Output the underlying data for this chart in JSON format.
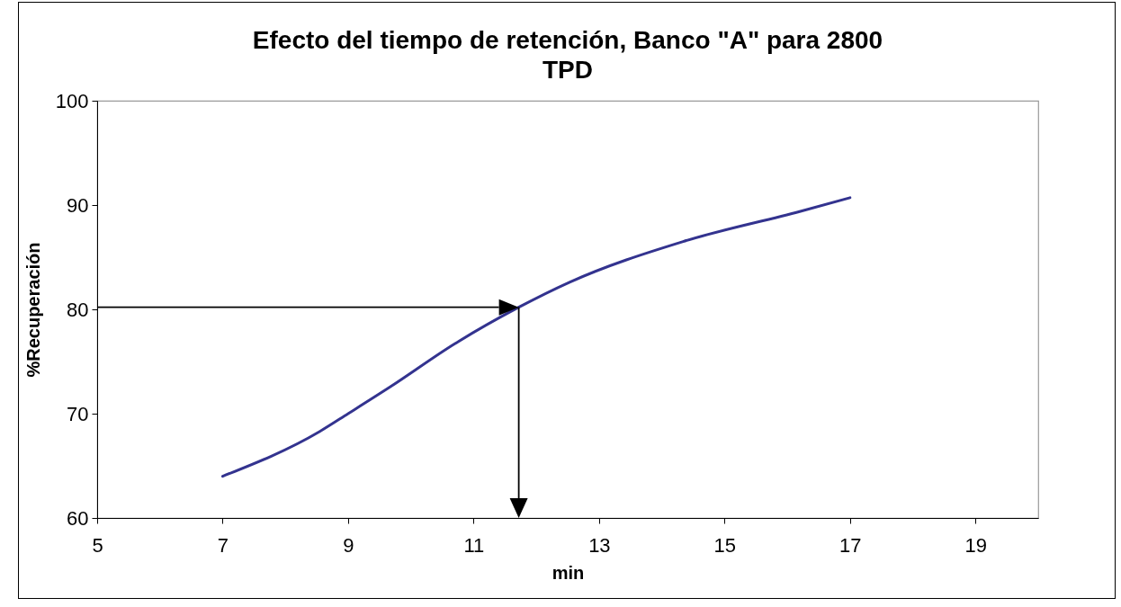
{
  "chart_data": {
    "type": "line",
    "title": "Efecto del tiempo de retención, Banco \"A\" para 2800 TPD",
    "xlabel": "min",
    "ylabel": "%Recuperación",
    "x": [
      7,
      8.55,
      9,
      9.68,
      10.7,
      11.72,
      12.53,
      14.34,
      16.21,
      17
    ],
    "series": [
      {
        "color": "#33338f",
        "values": [
          64.0,
          68.3,
          70.0,
          72.6,
          76.7,
          80.2,
          82.6,
          86.5,
          89.4,
          90.7
        ]
      }
    ],
    "xlim": [
      5,
      20
    ],
    "xticks": [
      5,
      7,
      9,
      11,
      13,
      15,
      17,
      19
    ],
    "ylim": [
      60,
      100
    ],
    "yticks": [
      60,
      70,
      80,
      90,
      100
    ],
    "grid": false,
    "marker": "none",
    "line_style": "solid"
  }
}
